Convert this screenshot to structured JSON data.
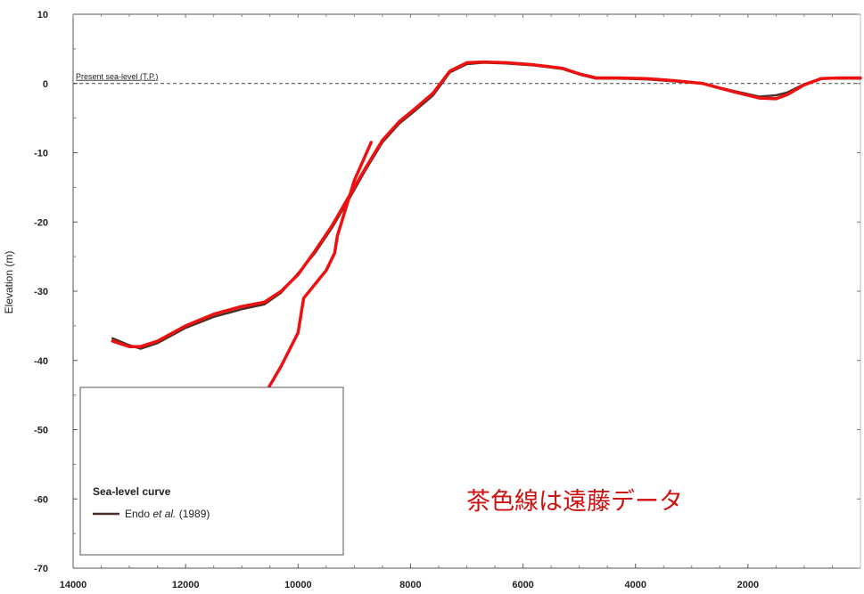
{
  "chart_data": {
    "type": "line",
    "title": "",
    "xlabel": "",
    "ylabel": "Elevation (m)",
    "xlim": [
      14000,
      0
    ],
    "ylim": [
      -70,
      10
    ],
    "x_reversed": true,
    "x_ticks": [
      14000,
      12000,
      10000,
      8000,
      6000,
      4000,
      2000
    ],
    "y_ticks": [
      10,
      0,
      -10,
      -20,
      -30,
      -40,
      -50,
      -60,
      -70
    ],
    "grid": false,
    "reference_line": {
      "y": 0,
      "label": "Present sea-level (T.P.)",
      "style": "dashed"
    },
    "legend": {
      "position": "bottom-left",
      "title": "Sea-level curve",
      "entries": [
        {
          "label_prefix": "Endo ",
          "label_italic": "et al.",
          "label_suffix": " (1989)",
          "color": "#4a3028"
        }
      ]
    },
    "annotation": {
      "text": "茶色線は遠藤データ",
      "color": "#cc1111",
      "position": "bottom-right"
    },
    "series": [
      {
        "name": "Endo et al. (1989)",
        "color": "#4a3028",
        "width": 2.5,
        "x": [
          13300,
          13000,
          12800,
          12500,
          12000,
          11500,
          11000,
          10600,
          10300,
          10000,
          9700,
          9400,
          9100,
          8800,
          8500,
          8200,
          7900,
          7600,
          7300,
          7000,
          6700,
          6300,
          5800,
          5300,
          5000,
          4700,
          4300,
          3800,
          3300,
          2800,
          2300,
          1800,
          1500,
          1300,
          1000,
          700,
          400,
          0
        ],
        "y": [
          -36.8,
          -37.8,
          -38.3,
          -37.5,
          -35.3,
          -33.7,
          -32.6,
          -31.9,
          -30.2,
          -27.4,
          -24.5,
          -20.9,
          -16.8,
          -12.5,
          -8.5,
          -5.8,
          -3.8,
          -1.7,
          1.6,
          2.8,
          3.0,
          2.9,
          2.6,
          2.1,
          1.3,
          0.7,
          0.7,
          0.6,
          0.3,
          0.0,
          -1.0,
          -1.9,
          -1.7,
          -1.3,
          -0.1,
          0.7,
          0.7,
          0.7
        ]
      },
      {
        "name": "",
        "color": "#ee1111",
        "width": 3.5,
        "x": [
          13300,
          13000,
          12800,
          12500,
          12000,
          11500,
          11000,
          10600,
          10300,
          10000,
          9700,
          9400,
          9100,
          8800,
          8500,
          8200,
          7900,
          7600,
          7300,
          7000,
          6700,
          6300,
          5800,
          5300,
          5000,
          4700,
          4300,
          3800,
          3300,
          2800,
          2300,
          1800,
          1500,
          1300,
          1000,
          700,
          400,
          0
        ],
        "y": [
          -37.2,
          -38.0,
          -38.0,
          -37.2,
          -35.0,
          -33.3,
          -32.2,
          -31.6,
          -30.0,
          -27.6,
          -24.2,
          -20.6,
          -16.4,
          -12.2,
          -8.2,
          -5.5,
          -3.5,
          -1.4,
          1.8,
          3.0,
          3.1,
          3.0,
          2.7,
          2.2,
          1.4,
          0.8,
          0.8,
          0.7,
          0.4,
          0.0,
          -1.1,
          -2.1,
          -2.2,
          -1.6,
          -0.2,
          0.7,
          0.8,
          0.8
        ]
      },
      {
        "name": "",
        "color": "#ee1111",
        "width": 3.5,
        "x": [
          10900,
          10600,
          10300,
          10000,
          9950,
          9900,
          9500,
          9350,
          9300,
          9000,
          8700
        ],
        "y": [
          -48.8,
          -45.0,
          -40.8,
          -36.0,
          -33.5,
          -31.0,
          -27.0,
          -24.5,
          -22.0,
          -14.0,
          -8.5
        ]
      }
    ]
  }
}
